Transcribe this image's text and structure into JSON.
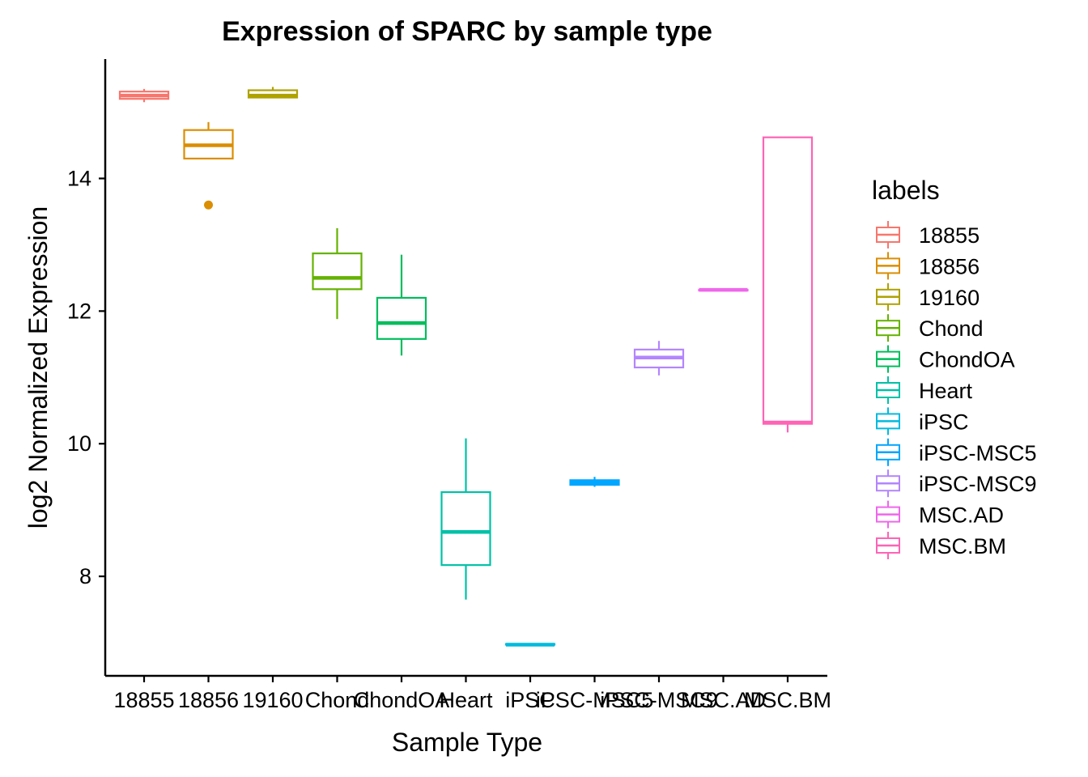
{
  "chart_data": {
    "type": "boxplot",
    "title": "Expression of SPARC by sample type",
    "xlabel": "Sample Type",
    "ylabel": "log2 Normalized Expression",
    "ylim": [
      6.5,
      15.8
    ],
    "yticks": [
      8,
      10,
      12,
      14
    ],
    "grid": false,
    "legend": {
      "title": "labels",
      "position": "right"
    },
    "categories": [
      "18855",
      "18856",
      "19160",
      "Chond",
      "ChondOA",
      "Heart",
      "iPSC",
      "iPSC-MSC5",
      "iPSC-MSC9",
      "MSC.AD",
      "MSC.BM"
    ],
    "colors": [
      "#F8766D",
      "#DB8E00",
      "#AEA200",
      "#64B200",
      "#00BD5C",
      "#00C1A7",
      "#00BADE",
      "#00A6FF",
      "#B385FF",
      "#EF67EB",
      "#FF63B6"
    ],
    "boxes": [
      {
        "label": "18855",
        "min": 15.15,
        "q1": 15.2,
        "median": 15.25,
        "q3": 15.31,
        "max": 15.35,
        "outliers": []
      },
      {
        "label": "18856",
        "min": 14.3,
        "q1": 14.3,
        "median": 14.5,
        "q3": 14.73,
        "max": 14.85,
        "outliers": [
          13.6
        ]
      },
      {
        "label": "19160",
        "min": 15.22,
        "q1": 15.22,
        "median": 15.25,
        "q3": 15.33,
        "max": 15.38,
        "outliers": []
      },
      {
        "label": "Chond",
        "min": 11.88,
        "q1": 12.33,
        "median": 12.5,
        "q3": 12.87,
        "max": 13.25,
        "outliers": []
      },
      {
        "label": "ChondOA",
        "min": 11.33,
        "q1": 11.58,
        "median": 11.82,
        "q3": 12.2,
        "max": 12.85,
        "outliers": []
      },
      {
        "label": "Heart",
        "min": 7.65,
        "q1": 8.17,
        "median": 8.67,
        "q3": 9.27,
        "max": 10.08,
        "outliers": []
      },
      {
        "label": "iPSC",
        "min": 6.97,
        "q1": 6.97,
        "median": 6.97,
        "q3": 6.98,
        "max": 6.98,
        "outliers": []
      },
      {
        "label": "iPSC-MSC5",
        "min": 9.35,
        "q1": 9.38,
        "median": 9.42,
        "q3": 9.45,
        "max": 9.5,
        "outliers": []
      },
      {
        "label": "iPSC-MSC9",
        "min": 11.03,
        "q1": 11.15,
        "median": 11.3,
        "q3": 11.42,
        "max": 11.55,
        "outliers": []
      },
      {
        "label": "MSC.AD",
        "min": 12.31,
        "q1": 12.31,
        "median": 12.32,
        "q3": 12.32,
        "max": 12.32,
        "outliers": []
      },
      {
        "label": "MSC.BM",
        "min": 10.17,
        "q1": 10.3,
        "median": 10.32,
        "q3": 14.62,
        "max": 14.62,
        "outliers": []
      }
    ]
  }
}
